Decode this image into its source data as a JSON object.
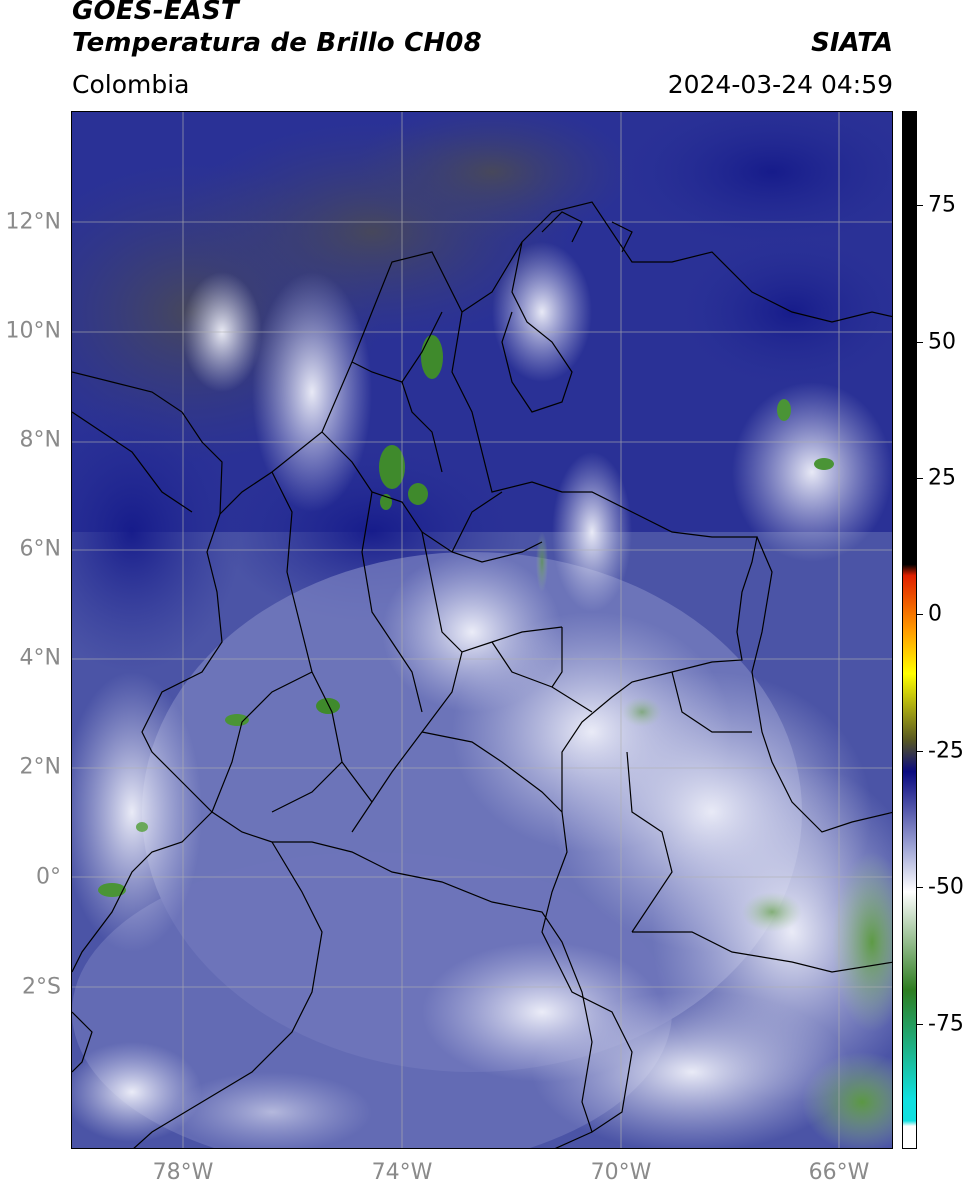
{
  "header": {
    "title_line1": "GOES-EAST",
    "title_line2": "Temperatura de Brillo CH08",
    "agency": "SIATA",
    "region": "Colombia",
    "timestamp": "2024-03-24 04:59"
  },
  "map": {
    "lon_range": [
      -80,
      -64.9
    ],
    "lat_range": [
      -4.2,
      14.1
    ],
    "latitude_ticks": [
      {
        "value": 12,
        "label": "12°N"
      },
      {
        "value": 10,
        "label": "10°N"
      },
      {
        "value": 8,
        "label": "8°N"
      },
      {
        "value": 6,
        "label": "6°N"
      },
      {
        "value": 4,
        "label": "4°N"
      },
      {
        "value": 2,
        "label": "2°N"
      },
      {
        "value": 0,
        "label": "0°"
      },
      {
        "value": -2,
        "label": "2°S"
      }
    ],
    "longitude_ticks": [
      {
        "value": -78,
        "label": "78°W"
      },
      {
        "value": -74,
        "label": "74°W"
      },
      {
        "value": -70,
        "label": "70°W"
      },
      {
        "value": -66,
        "label": "66°W"
      }
    ],
    "gridlines": true
  },
  "colorbar": {
    "range": [
      -97,
      93
    ],
    "ticks": [
      {
        "value": 75,
        "label": "75"
      },
      {
        "value": 50,
        "label": "50"
      },
      {
        "value": 25,
        "label": "25"
      },
      {
        "value": 0,
        "label": "0"
      },
      {
        "value": -25,
        "label": "-25"
      },
      {
        "value": -50,
        "label": "-50"
      },
      {
        "value": -75,
        "label": "-75"
      }
    ],
    "colors": {
      "black": "#000000",
      "red": "#e02000",
      "orange": "#ff9a00",
      "yellow": "#ffff00",
      "olive": "#5a5a20",
      "navy": "#0a0a80",
      "periwinkle": "#a0a6d6",
      "white": "#ffffff",
      "green": "#2e7d20",
      "cyan": "#10e0e0"
    }
  }
}
